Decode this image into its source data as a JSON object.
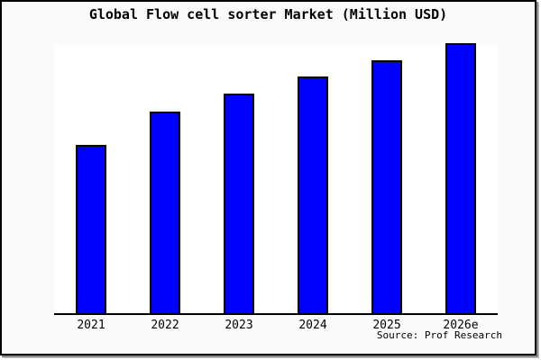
{
  "page": {
    "source_label": "Source: Prof Research"
  },
  "chart_data": {
    "type": "bar",
    "title": "Global Flow cell sorter Market (Million USD)",
    "categories": [
      "2021",
      "2022",
      "2023",
      "2024",
      "2025",
      "2026e"
    ],
    "values": [
      186,
      223,
      242,
      261,
      279,
      298
    ],
    "value_note": "no numeric y-axis shown; values are relative bar heights estimated from pixels",
    "xlabel": "",
    "ylabel": "",
    "ylim": [
      0,
      299
    ],
    "grid": false,
    "legend": false,
    "bar_color": "#0000FF",
    "bar_border_color": "#000000",
    "plot_bg": "#FFFFFF",
    "page_bg": "#FAFAFA",
    "annotations": [
      "Source: Prof Research"
    ]
  }
}
